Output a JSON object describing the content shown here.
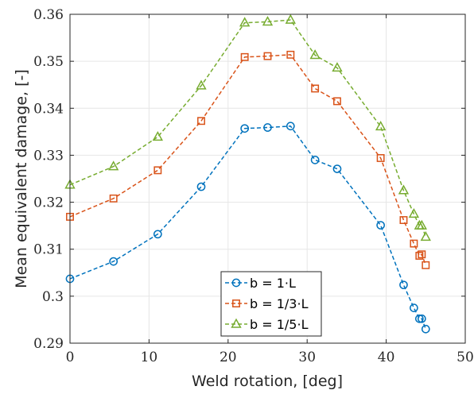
{
  "chart_data": {
    "type": "line",
    "title": "",
    "xlabel": "Weld rotation, [deg]",
    "ylabel": "Mean equivalent damage, [-]",
    "xlim": [
      0,
      50
    ],
    "ylim": [
      0.29,
      0.36
    ],
    "xticks": [
      0,
      10,
      20,
      30,
      40,
      50
    ],
    "yticks": [
      0.29,
      0.3,
      0.31,
      0.32,
      0.33,
      0.34,
      0.35,
      0.36
    ],
    "xtick_labels": [
      "0",
      "10",
      "20",
      "30",
      "40",
      "50"
    ],
    "ytick_labels": [
      "0.29",
      "0.3",
      "0.31",
      "0.32",
      "0.33",
      "0.34",
      "0.35",
      "0.36"
    ],
    "grid": true,
    "legend_position": "bottom-center",
    "x": [
      0,
      5.5,
      11.1,
      16.6,
      22.1,
      25.0,
      27.9,
      31.0,
      33.8,
      39.3,
      42.2,
      43.5,
      44.2,
      44.5,
      45.0
    ],
    "series": [
      {
        "name": "b = 1·L",
        "color": "#0072BD",
        "marker": "circle",
        "values": [
          0.3037,
          0.3074,
          0.3132,
          0.3233,
          0.3357,
          0.3359,
          0.3362,
          0.329,
          0.3271,
          0.3151,
          0.3024,
          0.2975,
          0.2952,
          0.2952,
          0.293
        ]
      },
      {
        "name": "b = 1/3·L",
        "color": "#D95319",
        "marker": "square",
        "values": [
          0.3169,
          0.3208,
          0.3268,
          0.3373,
          0.3509,
          0.3511,
          0.3514,
          0.3442,
          0.3415,
          0.3294,
          0.3162,
          0.3112,
          0.3086,
          0.3089,
          0.3066
        ]
      },
      {
        "name": "b = 1/5·L",
        "color": "#77AC30",
        "marker": "triangle",
        "values": [
          0.3237,
          0.3276,
          0.3339,
          0.3448,
          0.3582,
          0.3584,
          0.3588,
          0.3513,
          0.3486,
          0.3361,
          0.3225,
          0.3175,
          0.315,
          0.315,
          0.3126
        ]
      }
    ]
  }
}
